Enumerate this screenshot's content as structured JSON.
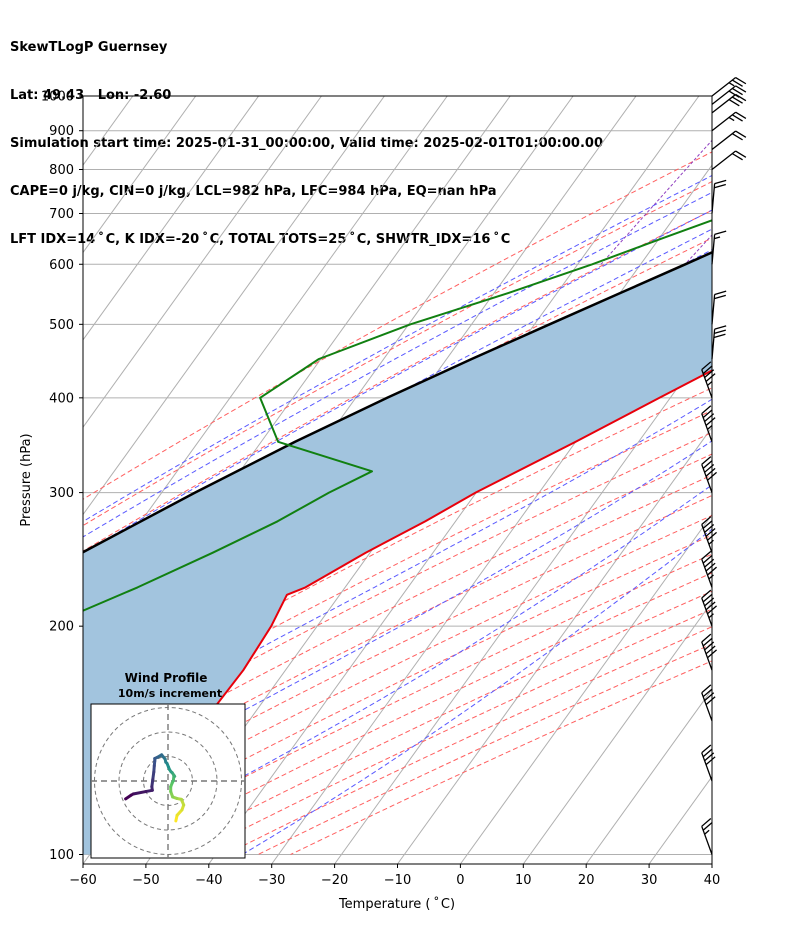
{
  "header": {
    "line1": "SkewTLogP Guernsey",
    "line2": "Lat: 49.43   Lon: -2.60",
    "line3": "Simulation start time: 2025-01-31_00:00:00, Valid time: 2025-02-01T01:00:00.00",
    "line4": "CAPE=0 j/kg, CIN=0 j/kg, LCL=982 hPa, LFC=984 hPa, EQ=nan hPa",
    "line5": "LFT IDX=14 ˚ C, K IDX=-20 ˚ C, TOTAL TOTS=25 ˚ C, SHWTR_IDX=16 ˚ C"
  },
  "chart_data": {
    "type": "line",
    "subtype": "skew-t log-p",
    "xlabel": "Temperature ( ˚ C)",
    "ylabel": "Pressure (hPa)",
    "xlim": [
      -60,
      40
    ],
    "ylim": [
      1050,
      100
    ],
    "x_ticks": [
      "−60",
      "−50",
      "−40",
      "−30",
      "−20",
      "−10",
      "0",
      "10",
      "20",
      "30",
      "40"
    ],
    "y_ticks": [
      "100",
      "200",
      "300",
      "400",
      "500",
      "600",
      "700",
      "800",
      "900",
      "1000"
    ],
    "grid": true,
    "colors": {
      "temperature": "#e8000b",
      "dewpoint": "#118011",
      "parcel": "#000000",
      "shade": "#a2c4de",
      "dry_adiabat": "#ff6060",
      "moist_adiabat": "#5a5aff",
      "mixing_ratio": "#9040c0",
      "isotherm": "#b0b0b0"
    },
    "series": [
      {
        "name": "Temperature",
        "points": [
          [
            1000,
            8.8
          ],
          [
            975,
            7.4
          ],
          [
            950,
            6.7
          ],
          [
            900,
            5.9
          ],
          [
            850,
            6.4
          ],
          [
            800,
            7.6
          ],
          [
            750,
            8.1
          ],
          [
            700,
            7.4
          ],
          [
            650,
            4.1
          ],
          [
            600,
            1.4
          ],
          [
            550,
            -2.8
          ],
          [
            500,
            -7.6
          ],
          [
            450,
            -14.3
          ],
          [
            400,
            -21.7
          ],
          [
            350,
            -30.0
          ],
          [
            300,
            -40.1
          ],
          [
            275,
            -44.8
          ],
          [
            250,
            -50.7
          ],
          [
            225,
            -56.3
          ],
          [
            220,
            -58.4
          ],
          [
            200,
            -57.3
          ],
          [
            175,
            -56.7
          ],
          [
            150,
            -57.1
          ],
          [
            125,
            -57.3
          ],
          [
            100,
            -57.0
          ]
        ]
      },
      {
        "name": "Dewpoint",
        "points": [
          [
            1000,
            5.3
          ],
          [
            975,
            4.9
          ],
          [
            950,
            2.2
          ],
          [
            900,
            -4.8
          ],
          [
            850,
            -13.3
          ],
          [
            800,
            -21.7
          ],
          [
            750,
            -25.7
          ],
          [
            700,
            -31.5
          ],
          [
            650,
            -39.4
          ],
          [
            600,
            -47.7
          ],
          [
            550,
            -57.7
          ],
          [
            500,
            -69.7
          ],
          [
            450,
            -80.3
          ],
          [
            400,
            -85.2
          ],
          [
            350,
            -77.3
          ],
          [
            320,
            -59.0
          ],
          [
            300,
            -63.4
          ],
          [
            275,
            -68.3
          ],
          [
            250,
            -75.0
          ],
          [
            225,
            -83.0
          ],
          [
            200,
            -93.0
          ],
          [
            175,
            -87.6
          ],
          [
            150,
            -83.3
          ],
          [
            125,
            -77.6
          ],
          [
            100,
            -70.8
          ]
        ]
      },
      {
        "name": "Parcel",
        "points": [
          [
            1000,
            8.8
          ],
          [
            984,
            6.1
          ],
          [
            950,
            3.4
          ],
          [
            900,
            -0.9
          ],
          [
            850,
            -5.3
          ],
          [
            800,
            -10.1
          ],
          [
            750,
            -15.2
          ],
          [
            700,
            -20.7
          ],
          [
            650,
            -26.5
          ],
          [
            600,
            -32.9
          ],
          [
            550,
            -39.9
          ],
          [
            500,
            -47.6
          ],
          [
            450,
            -56.0
          ],
          [
            400,
            -65.0
          ],
          [
            350,
            -74.6
          ],
          [
            300,
            -84.7
          ],
          [
            250,
            -95.8
          ],
          [
            200,
            -108.4
          ],
          [
            150,
            -123.2
          ],
          [
            100,
            -141.1
          ]
        ]
      }
    ],
    "wind_barbs": [
      {
        "p": 1000,
        "speed_kt": 25
      },
      {
        "p": 975,
        "speed_kt": 30
      },
      {
        "p": 950,
        "speed_kt": 30
      },
      {
        "p": 900,
        "speed_kt": 25
      },
      {
        "p": 850,
        "speed_kt": 20
      },
      {
        "p": 800,
        "speed_kt": 20
      },
      {
        "p": 700,
        "speed_kt": 20
      },
      {
        "p": 600,
        "speed_kt": 15
      },
      {
        "p": 500,
        "speed_kt": 20
      },
      {
        "p": 450,
        "speed_kt": 30
      },
      {
        "p": 400,
        "speed_kt": 45
      },
      {
        "p": 350,
        "speed_kt": 45
      },
      {
        "p": 300,
        "speed_kt": 50
      },
      {
        "p": 250,
        "speed_kt": 55
      },
      {
        "p": 225,
        "speed_kt": 55
      },
      {
        "p": 200,
        "speed_kt": 55
      },
      {
        "p": 175,
        "speed_kt": 50
      },
      {
        "p": 150,
        "speed_kt": 40
      },
      {
        "p": 125,
        "speed_kt": 40
      },
      {
        "p": 100,
        "speed_kt": 25
      }
    ],
    "inset": {
      "title": "Wind Profile",
      "subtitle": "10m/s increment",
      "hodograph_uv": [
        [
          -7.0,
          -11.0
        ],
        [
          -6.5,
          -8.7
        ],
        [
          -4.5,
          -6.5
        ],
        [
          -3.8,
          -4.5
        ],
        [
          -4.7,
          -2.2
        ],
        [
          -6.6,
          -1.8
        ],
        [
          -8.3,
          -1.2
        ],
        [
          -9.1,
          1.0
        ],
        [
          -9.1,
          3.0
        ],
        [
          -8.5,
          4.5
        ],
        [
          -8.0,
          5.5
        ],
        [
          -7.8,
          7.6
        ],
        [
          -7.5,
          7.2
        ],
        [
          -8.5,
          8.7
        ],
        [
          -9.0,
          9.1
        ],
        [
          -9.6,
          10.0
        ],
        [
          -10.0,
          11.0
        ],
        [
          -10.6,
          12.5
        ],
        [
          -11.1,
          13.0
        ],
        [
          -11.4,
          14.3
        ],
        [
          -12.0,
          15.0
        ],
        [
          -12.8,
          16.0
        ],
        [
          -14.5,
          15.0
        ],
        [
          -15.6,
          14.5
        ],
        [
          -15.6,
          13.5
        ],
        [
          -15.8,
          11.5
        ],
        [
          -16.0,
          9.0
        ],
        [
          -16.4,
          6.0
        ],
        [
          -16.8,
          3.0
        ],
        [
          -16.6,
          1.5
        ],
        [
          -19.3,
          1.0
        ],
        [
          -24.4,
          0.0
        ],
        [
          -25.3,
          -0.5
        ],
        [
          -27.5,
          -2.0
        ]
      ]
    }
  }
}
